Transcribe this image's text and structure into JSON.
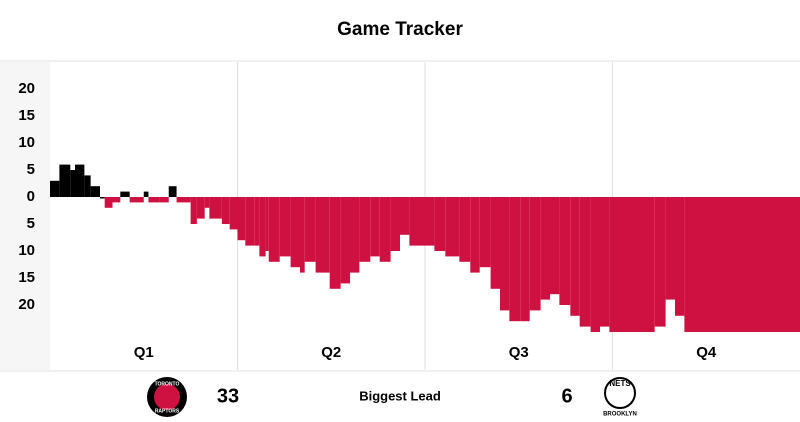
{
  "title": "Game Tracker",
  "chart_data": {
    "type": "step-area",
    "x": [
      0,
      0.6,
      1.3,
      1.6,
      2.2,
      2.6,
      3.2,
      3.5,
      4,
      4.5,
      5.1,
      6,
      6.3,
      7,
      7.6,
      8.1,
      9,
      9.4,
      9.9,
      10.2,
      11,
      11.5,
      12,
      12.5,
      13.1,
      13.4,
      13.8,
      14,
      14.7,
      15.4,
      16,
      16.3,
      17,
      17.9,
      18.6,
      19.2,
      19.8,
      20.5,
      21.1,
      21.8,
      22.4,
      23,
      24,
      24.6,
      25.3,
      26.2,
      26.9,
      27.5,
      28.2,
      28.8,
      29.4,
      30.1,
      30.7,
      31.4,
      32,
      32.6,
      33.3,
      33.9,
      34.6,
      35.2,
      35.8,
      38.7,
      39.4,
      40,
      40.6
    ],
    "values": [
      3,
      6,
      5,
      6,
      4,
      2,
      0,
      -2,
      -1,
      1,
      -1,
      1,
      -1,
      -1,
      2,
      -1,
      -5,
      -4,
      -2,
      -4,
      -5,
      -6,
      -8,
      -9,
      -9,
      -11,
      -10,
      -12,
      -11,
      -13,
      -14,
      -12,
      -14,
      -17,
      -16,
      -14,
      -12,
      -11,
      -12,
      -10,
      -7,
      -9,
      -9,
      -10,
      -11,
      -12,
      -14,
      -13,
      -17,
      -21,
      -23,
      -23,
      -21,
      -19,
      -18,
      -20,
      -22,
      -24,
      -25,
      -24,
      -25,
      -24,
      -19,
      -22,
      -25
    ],
    "positive_color": "#000000",
    "negative_color": "#ce1141",
    "xlim": [
      0,
      48
    ],
    "xticks": [
      12,
      24,
      36
    ],
    "quarters": [
      "Q1",
      "Q2",
      "Q3",
      "Q4"
    ],
    "ylim": [
      -25,
      25
    ],
    "yticks": [
      20,
      15,
      10,
      5,
      0,
      {
        "value": -5,
        "label": "5"
      },
      {
        "value": -10,
        "label": "10"
      },
      {
        "value": -15,
        "label": "15"
      },
      {
        "value": -20,
        "label": "20"
      }
    ],
    "grid": true
  },
  "footer": {
    "home_logo": [
      "TORONTO",
      "RAPTORS"
    ],
    "home_value": "33",
    "label": "Biggest Lead",
    "away_value": "6",
    "away_logo": [
      "NETS",
      "BROOKLYN"
    ]
  }
}
